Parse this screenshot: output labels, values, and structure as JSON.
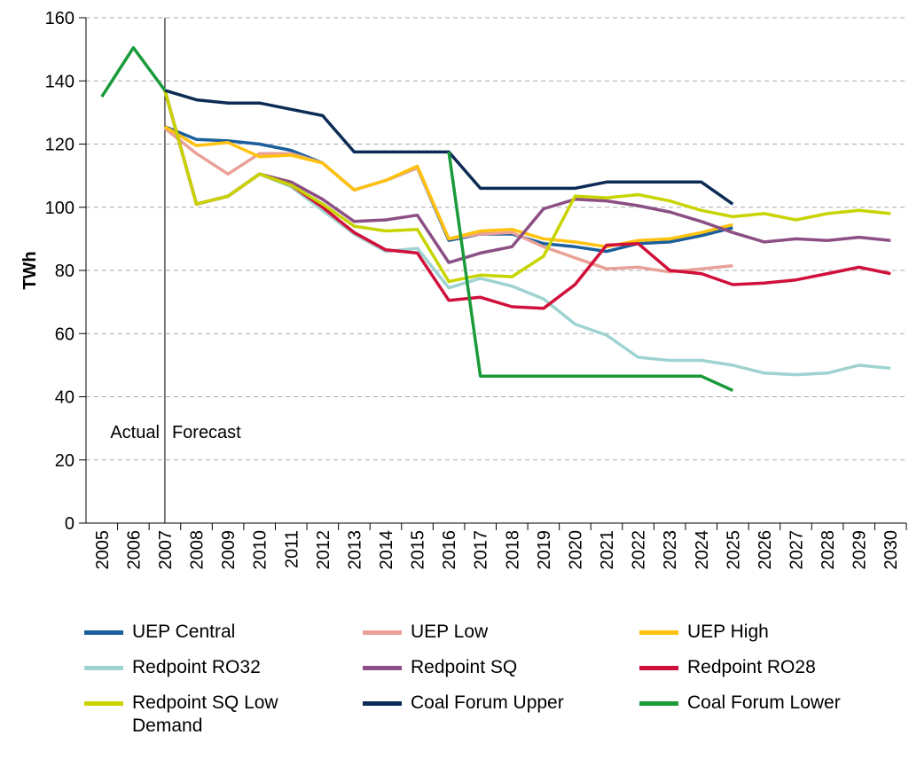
{
  "chart_data": {
    "type": "line",
    "y_label": "TWh",
    "categories": [
      "2005",
      "2006",
      "2007",
      "2008",
      "2009",
      "2010",
      "2011",
      "2012",
      "2013",
      "2014",
      "2015",
      "2016",
      "2017",
      "2018",
      "2019",
      "2020",
      "2021",
      "2022",
      "2023",
      "2024",
      "2025",
      "2026",
      "2027",
      "2028",
      "2029",
      "2030"
    ],
    "ylim": [
      0,
      160
    ],
    "yticks": [
      0,
      20,
      40,
      60,
      80,
      100,
      120,
      140,
      160
    ],
    "grid": true,
    "annotations": [
      {
        "text": "Actual"
      },
      {
        "text": "Forecast"
      }
    ],
    "series": [
      {
        "name": "UEP Central",
        "color": "#1b5f9c",
        "values": [
          null,
          null,
          125.5,
          121.5,
          121,
          120,
          118,
          114,
          105.5,
          108.5,
          112.5,
          89.5,
          91.5,
          91.5,
          88.5,
          87.5,
          86,
          88.5,
          89,
          91,
          93.5,
          null,
          null,
          null,
          null,
          null
        ]
      },
      {
        "name": "UEP Low",
        "color": "#e9a197",
        "values": [
          null,
          null,
          125,
          117,
          110.5,
          117,
          117,
          114,
          105.5,
          108.5,
          112.5,
          90,
          91.5,
          92,
          87.5,
          84,
          80.5,
          81,
          79.5,
          80.5,
          81.5,
          null,
          null,
          null,
          null,
          null
        ]
      },
      {
        "name": "UEP High",
        "color": "#ffc20e",
        "values": [
          null,
          null,
          125.5,
          119.5,
          120.5,
          116,
          116.5,
          114,
          105.5,
          108.5,
          113,
          90,
          92.5,
          93,
          90,
          89,
          87.5,
          89.5,
          90,
          92,
          94.5,
          null,
          null,
          null,
          null,
          null
        ]
      },
      {
        "name": "Redpoint RO32",
        "color": "#9fd3d2",
        "values": [
          null,
          null,
          137,
          101,
          103.5,
          110.5,
          106.5,
          99,
          91.5,
          86,
          87,
          74.5,
          77.5,
          75,
          71,
          63,
          59.5,
          52.5,
          51.5,
          51.5,
          50,
          47.5,
          47,
          47.5,
          50,
          49
        ]
      },
      {
        "name": "Redpoint SQ",
        "color": "#8c4f85",
        "values": [
          null,
          null,
          137,
          101,
          103.5,
          110.5,
          108,
          102.5,
          95.5,
          96,
          97.5,
          82.5,
          85.5,
          87.5,
          99.5,
          102.5,
          102,
          100.5,
          98.5,
          95.5,
          92,
          89,
          90,
          89.5,
          90.5,
          89.5
        ]
      },
      {
        "name": "Redpoint RO28",
        "color": "#d0103a",
        "values": [
          null,
          null,
          137,
          101,
          103.5,
          110.5,
          107,
          100,
          92,
          86.5,
          85.5,
          70.5,
          71.5,
          68.5,
          68,
          75.5,
          88,
          88.5,
          80,
          79,
          75.5,
          76,
          77,
          79,
          81,
          79
        ]
      },
      {
        "name": "Redpoint SQ Low Demand",
        "color": "#c8d400",
        "values": [
          null,
          null,
          137,
          101,
          103.5,
          110.5,
          107,
          101,
          94,
          92.5,
          93,
          76.5,
          78.5,
          78,
          84.5,
          103.5,
          103,
          104,
          102,
          99,
          97,
          98,
          96,
          98,
          99,
          98
        ]
      },
      {
        "name": "Coal Forum Upper",
        "color": "#0c2c55",
        "values": [
          null,
          null,
          137,
          134,
          133,
          133,
          131,
          129,
          117.5,
          117.5,
          117.5,
          117.5,
          106,
          106,
          106,
          106,
          108,
          108,
          108,
          108,
          101,
          null,
          null,
          null,
          null,
          null
        ]
      },
      {
        "name": "Coal Forum Lower",
        "color": "#1a9b3a",
        "values": [
          135,
          150.5,
          137,
          null,
          null,
          null,
          null,
          null,
          null,
          null,
          null,
          117.5,
          46.5,
          46.5,
          46.5,
          46.5,
          46.5,
          46.5,
          46.5,
          46.5,
          42,
          null,
          null,
          null,
          null,
          null
        ]
      }
    ]
  }
}
